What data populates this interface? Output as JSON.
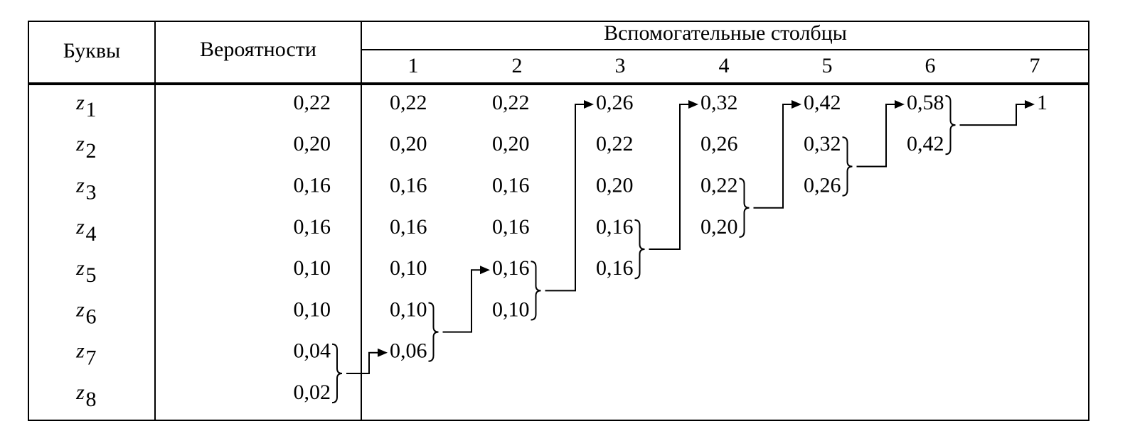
{
  "header": {
    "letters": "Буквы",
    "probabilities": "Вероятности",
    "auxiliary": "Вспомогательные столбцы",
    "column_numbers": [
      "1",
      "2",
      "3",
      "4",
      "5",
      "6",
      "7"
    ]
  },
  "rows": [
    {
      "letter": "z",
      "index": "1",
      "probability": "0,22"
    },
    {
      "letter": "z",
      "index": "2",
      "probability": "0,20"
    },
    {
      "letter": "z",
      "index": "3",
      "probability": "0,16"
    },
    {
      "letter": "z",
      "index": "4",
      "probability": "0,16"
    },
    {
      "letter": "z",
      "index": "5",
      "probability": "0,10"
    },
    {
      "letter": "z",
      "index": "6",
      "probability": "0,10"
    },
    {
      "letter": "z",
      "index": "7",
      "probability": "0,04"
    },
    {
      "letter": "z",
      "index": "8",
      "probability": "0,02"
    }
  ],
  "auxiliary_columns": [
    [
      "0,22",
      "0,20",
      "0,16",
      "0,16",
      "0,10",
      "0,10",
      "0,06"
    ],
    [
      "0,22",
      "0,20",
      "0,16",
      "0,16",
      "0,16",
      "0,10"
    ],
    [
      "0,26",
      "0,22",
      "0,20",
      "0,16",
      "0,16"
    ],
    [
      "0,32",
      "0,26",
      "0,22",
      "0,20"
    ],
    [
      "0,42",
      "0,32",
      "0,26"
    ],
    [
      "0,58",
      "0,42"
    ],
    [
      "1"
    ]
  ]
}
